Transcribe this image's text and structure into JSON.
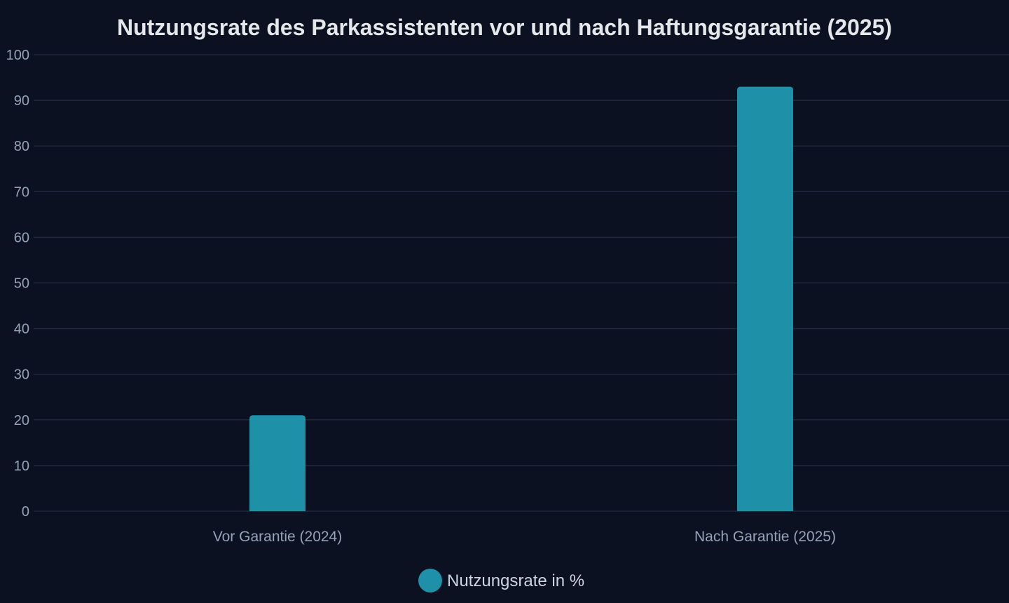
{
  "chart_data": {
    "type": "bar",
    "title": "Nutzungsrate des Parkassistenten vor und nach Haftungsgarantie (2025)",
    "categories": [
      "Vor Garantie (2024)",
      "Nach Garantie (2025)"
    ],
    "series": [
      {
        "name": "Nutzungsrate in %",
        "values": [
          21,
          93
        ],
        "color": "#1e90a8"
      }
    ],
    "xlabel": "",
    "ylabel": "",
    "ylim": [
      0,
      100
    ],
    "yticks": [
      0,
      10,
      20,
      30,
      40,
      50,
      60,
      70,
      80,
      90,
      100
    ],
    "grid": true,
    "legend_position": "bottom-center"
  },
  "colors": {
    "background": "#0b1120",
    "grid": "#1e293b",
    "text": "#94a3b8",
    "title": "#e5e7eb"
  }
}
